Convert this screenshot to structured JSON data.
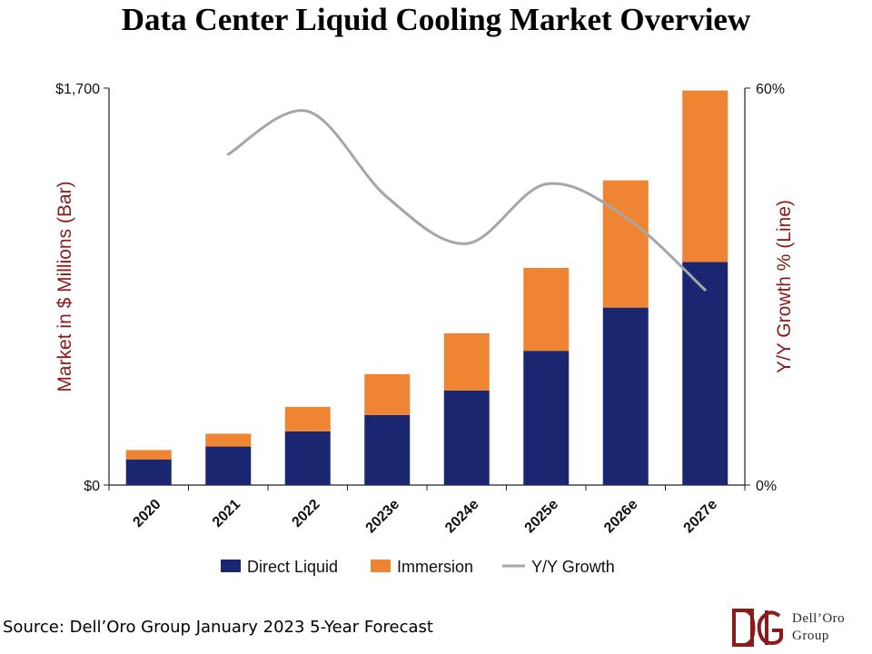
{
  "title": "Data Center Liquid Cooling Market Overview",
  "source": "Source: Dell’Oro Group January 2023 5-Year Forecast",
  "logo": {
    "line1": "Dell’Oro",
    "line2": "Group"
  },
  "colors": {
    "direct": "#1a2670",
    "immersion": "#ef8433",
    "growth": "#a6a6a6",
    "axis_title": "#8b1a1a"
  },
  "chart_data": {
    "type": "bar",
    "categories": [
      "2020",
      "2021",
      "2022",
      "2023e",
      "2024e",
      "2025e",
      "2026e",
      "2027e"
    ],
    "series": [
      {
        "name": "Direct Liquid",
        "type": "bar",
        "axis": "left",
        "values": [
          110,
          165,
          230,
          300,
          405,
          575,
          760,
          955
        ]
      },
      {
        "name": "Immersion",
        "type": "bar",
        "axis": "left",
        "values": [
          40,
          55,
          105,
          175,
          245,
          355,
          545,
          735
        ]
      },
      {
        "name": "Y/Y Growth",
        "type": "line",
        "axis": "right",
        "values": [
          null,
          50,
          56.5,
          43.5,
          36.5,
          45.5,
          40.5,
          29.5
        ]
      }
    ],
    "stacked": true,
    "ylabel": "Market in $ Millions (Bar)",
    "y2label": "Y/Y Growth % (Line)",
    "ylim": [
      0,
      1700
    ],
    "y2lim": [
      0,
      60
    ],
    "yticks": [
      "$0",
      "$1,700"
    ],
    "y2ticks": [
      "0%",
      "60%"
    ],
    "legend_position": "bottom"
  }
}
